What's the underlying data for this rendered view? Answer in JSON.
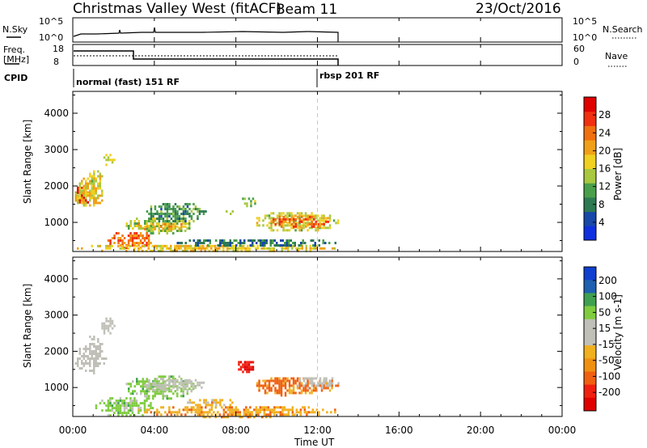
{
  "header": {
    "station": "Christmas Valley West (fitACF)",
    "beam": "Beam 11",
    "date": "23/Oct/2016"
  },
  "sky_panel": {
    "left_label": "N.Sky",
    "right_label": "N.Search",
    "left_ticks": [
      "10^5",
      "10^0"
    ],
    "right_ticks": [
      "10^5",
      "10^0"
    ]
  },
  "freq_panel": {
    "left_label_line1": "Freq.",
    "left_label_line2": "[MHz]",
    "right_label": "Nave",
    "left_ticks": [
      "18",
      "8"
    ],
    "right_ticks": [
      "60",
      "0"
    ]
  },
  "cpid_panel": {
    "label": "CPID",
    "modes": [
      "normal (fast) 151 RF",
      "rbsp 201 RF"
    ]
  },
  "colors": {
    "power_scale": [
      "#1030e0",
      "#1848a8",
      "#2e7a52",
      "#4aa04a",
      "#a8c840",
      "#f0d020",
      "#f0a018",
      "#f07010",
      "#f03010",
      "#e00000"
    ],
    "velocity_scale": [
      "#1040d0",
      "#2060b0",
      "#40a050",
      "#80cc40",
      "#c0c0b8",
      "#c0c0b8",
      "#f0b020",
      "#f09010",
      "#f06010",
      "#f02010",
      "#e00000"
    ],
    "ground_scatter": "#c0c0b8"
  },
  "chart_data": [
    {
      "type": "heatmap",
      "name": "power",
      "ylabel": "Slant Range [km]",
      "yticks": [
        "1000",
        "2000",
        "3000",
        "4000"
      ],
      "ylim": [
        200,
        4600
      ],
      "colorbar_label": "Power [dB]",
      "colorbar_ticks": [
        "4",
        "8",
        "12",
        "16",
        "20",
        "24",
        "28"
      ],
      "colorbar_range": [
        0,
        32
      ],
      "blobs": [
        {
          "t0": 0.0,
          "t1": 0.9,
          "r0": 1500,
          "r1": 2050,
          "value": 28
        },
        {
          "t0": 0.0,
          "t1": 1.5,
          "r0": 1400,
          "r1": 2300,
          "value": 18
        },
        {
          "t0": 0.7,
          "t1": 1.5,
          "r0": 1900,
          "r1": 2500,
          "value": 16
        },
        {
          "t0": 1.4,
          "t1": 2.0,
          "r0": 2600,
          "r1": 2950,
          "value": 16
        },
        {
          "t0": 2.5,
          "t1": 6.0,
          "r0": 700,
          "r1": 1200,
          "value": 14
        },
        {
          "t0": 3.0,
          "t1": 5.5,
          "r0": 800,
          "r1": 1050,
          "value": 20
        },
        {
          "t0": 1.5,
          "t1": 4.0,
          "r0": 300,
          "r1": 800,
          "value": 24
        },
        {
          "t0": 3.5,
          "t1": 6.5,
          "r0": 1000,
          "r1": 1600,
          "value": 10
        },
        {
          "t0": 7.4,
          "t1": 8.0,
          "r0": 1200,
          "r1": 1400,
          "value": 14
        },
        {
          "t0": 8.2,
          "t1": 9.0,
          "r0": 1450,
          "r1": 1750,
          "value": 14
        },
        {
          "t0": 8.8,
          "t1": 13.0,
          "r0": 750,
          "r1": 1350,
          "value": 16
        },
        {
          "t0": 9.5,
          "t1": 12.5,
          "r0": 850,
          "r1": 1250,
          "value": 24
        },
        {
          "t0": 0.0,
          "t1": 13.0,
          "r0": 200,
          "r1": 450,
          "value": 18
        },
        {
          "t0": 5.0,
          "t1": 13.0,
          "r0": 350,
          "r1": 600,
          "value": 8
        }
      ]
    },
    {
      "type": "heatmap",
      "name": "velocity",
      "ylabel": "Slant Range [km]",
      "yticks": [
        "1000",
        "2000",
        "3000",
        "4000"
      ],
      "ylim": [
        200,
        4600
      ],
      "colorbar_label": "Velocity [m s-1]",
      "colorbar_ticks": [
        "-200",
        "-100",
        "-50",
        "-15",
        "15",
        "50",
        "100",
        "200"
      ],
      "blobs": [
        {
          "t0": 0.0,
          "t1": 1.6,
          "r0": 1400,
          "r1": 2300,
          "value": "gs"
        },
        {
          "t0": 1.3,
          "t1": 2.0,
          "r0": 2500,
          "r1": 3000,
          "value": "gs"
        },
        {
          "t0": 0.6,
          "t1": 1.4,
          "r0": 1900,
          "r1": 2500,
          "value": "gs"
        },
        {
          "t0": 2.5,
          "t1": 6.0,
          "r0": 700,
          "r1": 1400,
          "value": 30
        },
        {
          "t0": 3.2,
          "t1": 6.5,
          "r0": 900,
          "r1": 1300,
          "value": "gs"
        },
        {
          "t0": 1.0,
          "t1": 4.0,
          "r0": 200,
          "r1": 800,
          "value": 30
        },
        {
          "t0": 8.0,
          "t1": 8.9,
          "r0": 1450,
          "r1": 1800,
          "value": -150
        },
        {
          "t0": 8.7,
          "t1": 13.0,
          "r0": 800,
          "r1": 1350,
          "value": -60
        },
        {
          "t0": 10.8,
          "t1": 13.0,
          "r0": 1000,
          "r1": 1350,
          "value": "gs"
        },
        {
          "t0": 3.0,
          "t1": 13.0,
          "r0": 200,
          "r1": 550,
          "value": -40
        },
        {
          "t0": 5.5,
          "t1": 8.0,
          "r0": 500,
          "r1": 750,
          "value": -30
        }
      ]
    }
  ],
  "x_axis": {
    "label": "Time UT",
    "ticks": [
      "00:00",
      "04:00",
      "08:00",
      "12:00",
      "16:00",
      "20:00",
      "00:00"
    ],
    "range_hours": [
      0,
      24
    ],
    "data_end_hours": 13.0,
    "cpid_change_hours": 12.0
  }
}
